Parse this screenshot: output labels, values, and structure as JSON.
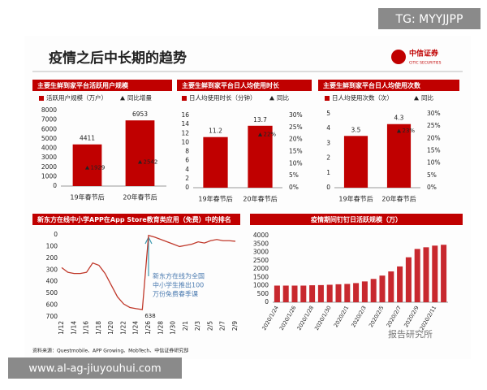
{
  "header": {
    "title": "疫情之后中长期的趋势",
    "logo_name": "中信证券",
    "logo_sub": "CITIC SECURITIES"
  },
  "source": "资料来源：Questmobile、APP Growing、MobTech、中信证券研究部",
  "overlays": {
    "tag": "TG: MYYJJPP",
    "url": "www.al-ag-jiuyouhui.com",
    "watermark": "报告研究所"
  },
  "chart_data": [
    {
      "type": "bar",
      "title": "主要生鲜到家平台活跃用户规模",
      "categories": [
        "19年春节后",
        "20年春节后"
      ],
      "series": [
        {
          "name": "活跃用户规模（万户）",
          "color": "#c00000",
          "mark": "bar",
          "values": [
            4411,
            6953
          ]
        },
        {
          "name": "同比增量",
          "color": "#c00000",
          "mark": "triangle",
          "values": [
            1929,
            2542
          ]
        }
      ],
      "ylim": [
        0,
        8000
      ],
      "yticks": [
        0,
        1000,
        2000,
        3000,
        4000,
        5000,
        6000,
        7000,
        8000
      ]
    },
    {
      "type": "bar",
      "title": "主要生鲜到家平台日人均使用时长",
      "categories": [
        "19年春节后",
        "20年春节后"
      ],
      "series": [
        {
          "name": "日人均使用时长（分钟）",
          "color": "#c00000",
          "mark": "bar",
          "values": [
            11.2,
            13.7
          ]
        },
        {
          "name": "同比",
          "color": "#c00000",
          "mark": "triangle",
          "axis": "y2",
          "values": [
            null,
            22
          ],
          "value_labels": [
            null,
            "22%"
          ]
        }
      ],
      "ylim": [
        0,
        16
      ],
      "yticks": [
        0,
        2,
        4,
        6,
        8,
        10,
        12,
        14,
        16
      ],
      "y2lim": [
        0,
        30
      ],
      "y2ticks": [
        {
          "value": 0,
          "label": "0%"
        },
        {
          "value": 5,
          "label": "5%"
        },
        {
          "value": 10,
          "label": "10%"
        },
        {
          "value": 15,
          "label": "15%"
        },
        {
          "value": 20,
          "label": "20%"
        },
        {
          "value": 25,
          "label": "25%"
        },
        {
          "value": 30,
          "label": "30%"
        }
      ]
    },
    {
      "type": "bar",
      "title": "主要生鲜到家平台日人均使用次数",
      "categories": [
        "19年春节后",
        "20年春节后"
      ],
      "series": [
        {
          "name": "日人均使用次数（次）",
          "color": "#c00000",
          "mark": "bar",
          "values": [
            3.5,
            4.3
          ]
        },
        {
          "name": "同比",
          "color": "#c00000",
          "mark": "triangle",
          "axis": "y2",
          "values": [
            null,
            23
          ],
          "value_labels": [
            null,
            "23%"
          ]
        }
      ],
      "ylim": [
        0,
        5
      ],
      "yticks": [
        0,
        1,
        2,
        3,
        4,
        5
      ],
      "y2lim": [
        0,
        30
      ],
      "y2ticks": [
        {
          "value": 0,
          "label": "0%"
        },
        {
          "value": 5,
          "label": "5%"
        },
        {
          "value": 10,
          "label": "10%"
        },
        {
          "value": 15,
          "label": "15%"
        },
        {
          "value": 20,
          "label": "20%"
        },
        {
          "value": 25,
          "label": "25%"
        },
        {
          "value": 30,
          "label": "30%"
        }
      ]
    },
    {
      "type": "line",
      "title": "新东方在线中小学APP在App Store教育类应用（免费）中的排名",
      "categories": [
        "1/12",
        null,
        "1/14",
        null,
        "1/16",
        null,
        "1/18",
        null,
        "1/20",
        null,
        "1/22",
        null,
        "1/24",
        null,
        "1/26",
        null,
        "1/28",
        null,
        "1/30",
        null,
        "2/1",
        null,
        "2/3",
        null,
        "2/5",
        null,
        "2/7",
        null,
        "2/9"
      ],
      "values": [
        280,
        320,
        330,
        330,
        320,
        240,
        260,
        330,
        430,
        530,
        590,
        620,
        630,
        638,
        5,
        20,
        40,
        60,
        80,
        100,
        90,
        80,
        60,
        70,
        50,
        40,
        50,
        50,
        55
      ],
      "color": "#c0392b",
      "y_inverted": true,
      "ylim": [
        0,
        700
      ],
      "yticks": [
        0,
        100,
        200,
        300,
        400,
        500,
        600,
        700
      ],
      "annotation": [
        "新东方在线为全国",
        "中小学生推出100",
        "万份免费春季课"
      ]
    },
    {
      "type": "bar",
      "title": "疫情期间钉钉日活跃规模（万）",
      "categories": [
        "2020/1/24",
        null,
        "2020/1/26",
        null,
        "2020/1/28",
        null,
        "2020/1/30",
        null,
        "2020/2/1",
        null,
        "2020/2/3",
        null,
        "2020/2/5",
        null,
        "2020/2/7",
        null,
        "2020/2/9",
        null,
        "2020/2/11",
        null
      ],
      "values": [
        1000,
        1000,
        1000,
        1000,
        1020,
        1030,
        1050,
        1080,
        1100,
        1150,
        1250,
        1400,
        1600,
        1850,
        2150,
        2700,
        3200,
        3300,
        3400,
        3450
      ],
      "color": "#c8282e",
      "ylim": [
        0,
        4000
      ],
      "yticks": [
        0,
        500,
        1000,
        1500,
        2000,
        2500,
        3000,
        3500,
        4000
      ]
    }
  ]
}
